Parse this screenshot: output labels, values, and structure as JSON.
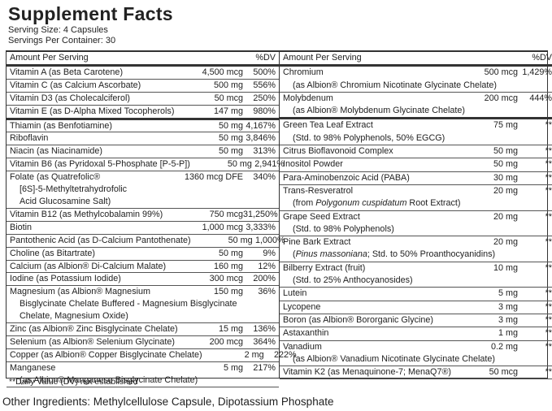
{
  "header": {
    "title": "Supplement Facts",
    "serving_size": "Serving Size: 4 Capsules",
    "servings_per_container": "Servings Per Container: 30"
  },
  "left": {
    "head": [
      "Amount Per Serving",
      "%DV"
    ],
    "sections": [
      {
        "rows": [
          {
            "name": "Vitamin A (as Beta Carotene)",
            "amount": "4,500 mcg",
            "dv": "500%"
          },
          {
            "name": "Vitamin C (as Calcium Ascorbate)",
            "amount": "500 mg",
            "dv": "556%"
          },
          {
            "name": "Vitamin D3 (as Cholecalciferol)",
            "amount": "50 mcg",
            "dv": "250%"
          },
          {
            "name": "Vitamin E (as D-Alpha Mixed Tocopherols)",
            "amount": "147 mg",
            "dv": "980%"
          }
        ]
      },
      {
        "rows": [
          {
            "name": "Thiamin (as Benfotiamine)",
            "amount": "50 mg",
            "dv": "4,167%"
          },
          {
            "name": "Riboflavin",
            "amount": "50 mg",
            "dv": "3,846%"
          },
          {
            "name": "Niacin (as Niacinamide)",
            "amount": "50 mg",
            "dv": "313%"
          },
          {
            "name": "Vitamin B6 (as Pyridoxal 5-Phosphate [P-5-P])",
            "amount": "50 mg",
            "dv": "2,941%"
          },
          {
            "name": "Folate (as Quatrefolic®",
            "amount": "1360 mcg DFE",
            "dv": "340%",
            "sub": [
              [
                "[6S]-5-Methyltetrahydrofolic"
              ],
              [
                "Acid Glucosamine Salt)"
              ]
            ]
          },
          {
            "name": "Vitamin B12 (as Methylcobalamin 99%)",
            "amount": "750 mcg",
            "dv": "31,250%"
          },
          {
            "name": "Biotin",
            "amount": "1,000 mcg",
            "dv": "3,333%"
          },
          {
            "name": "Pantothenic Acid (as D-Calcium Pantothenate)",
            "amount": "50 mg",
            "dv": "1,000%"
          },
          {
            "name": "Choline (as Bitartrate)",
            "amount": "50 mg",
            "dv": "9%"
          },
          {
            "name": "Calcium (as Albion® Di-Calcium Malate)",
            "amount": "160 mg",
            "dv": "12%"
          },
          {
            "name": "Iodine (as Potassium Iodide)",
            "amount": "300 mcg",
            "dv": "200%"
          },
          {
            "name": "Magnesium (as Albion® Magnesium",
            "amount": "150 mg",
            "dv": "36%",
            "sub": [
              [
                "Bisglycinate Chelate Buffered - Magnesium Bisglycinate"
              ],
              [
                "Chelate, Magnesium Oxide)"
              ]
            ]
          },
          {
            "name": "Zinc (as Albion® Zinc Bisglycinate Chelate)",
            "amount": "15 mg",
            "dv": "136%"
          },
          {
            "name": "Selenium (as Albion® Selenium Glycinate)",
            "amount": "200 mcg",
            "dv": "364%"
          },
          {
            "name": "Copper (as Albion® Copper Bisglycinate Chelate)",
            "amount": "2 mg",
            "dv": "222%"
          },
          {
            "name": "Manganese",
            "amount": "5 mg",
            "dv": "217%",
            "sub": [
              [
                "(as Albion® Manganese Bisglycinate Chelate)"
              ]
            ]
          }
        ]
      }
    ]
  },
  "right": {
    "head": [
      "Amount Per Serving",
      "%DV"
    ],
    "sections": [
      {
        "rows": [
          {
            "name": "Chromium",
            "amount": "500 mcg",
            "dv": "1,429%",
            "sub": [
              [
                "(as Albion® Chromium Nicotinate Glycinate Chelate)"
              ]
            ]
          },
          {
            "name": "Molybdenum",
            "amount": "200 mcg",
            "dv": "444%",
            "sub": [
              [
                "(as Albion® Molybdenum Glycinate Chelate)"
              ]
            ]
          }
        ]
      },
      {
        "rows": [
          {
            "name": "Green Tea Leaf Extract",
            "amount": "75 mg",
            "dv": "**",
            "sub": [
              [
                "(Std. to 98% Polyphenols, 50% EGCG)"
              ]
            ]
          },
          {
            "name": "Citrus Bioflavonoid Complex",
            "amount": "50 mg",
            "dv": "**"
          },
          {
            "name": "Inositol Powder",
            "amount": "50 mg",
            "dv": "**"
          },
          {
            "name": "Para-Aminobenzoic Acid (PABA)",
            "amount": "30 mg",
            "dv": "**"
          },
          {
            "name": "Trans-Resveratrol",
            "amount": "20 mg",
            "dv": "**",
            "sub": [
              [
                "(from ",
                "Polygonum cuspidatum",
                " Root Extract)"
              ]
            ]
          },
          {
            "name": "Grape Seed Extract",
            "amount": "20 mg",
            "dv": "**",
            "sub": [
              [
                "(Std. to 98% Polyphenols)"
              ]
            ]
          },
          {
            "name": "Pine Bark Extract",
            "amount": "20 mg",
            "dv": "**",
            "sub": [
              [
                "(",
                "Pinus massoniana",
                "; Std. to 50% Proanthocyanidins)"
              ]
            ]
          },
          {
            "name": "Bilberry Extract (fruit)",
            "amount": "10 mg",
            "dv": "**",
            "sub": [
              [
                "(Std. to 25% Anthocyanosides)"
              ]
            ]
          },
          {
            "name": "Lutein",
            "amount": "5 mg",
            "dv": "**"
          },
          {
            "name": "Lycopene",
            "amount": "3 mg",
            "dv": "**"
          },
          {
            "name": "Boron (as Albion® Bororganic Glycine)",
            "amount": "3 mg",
            "dv": "**"
          },
          {
            "name": "Astaxanthin",
            "amount": "1 mg",
            "dv": "**"
          },
          {
            "name": "Vanadium",
            "amount": "0.2 mg",
            "dv": "**",
            "sub": [
              [
                "(as Albion® Vanadium Nicotinate Glycinate Chelate)"
              ]
            ]
          },
          {
            "name": "Vitamin K2 (as Menaquinone-7; MenaQ7®)",
            "amount": "50 mcg",
            "dv": "**"
          }
        ]
      }
    ]
  },
  "footnote": "**Daily Value (DV) not established",
  "other_ingredients": "Other Ingredients: Methylcellulose Capsule, Dipotassium Phosphate"
}
